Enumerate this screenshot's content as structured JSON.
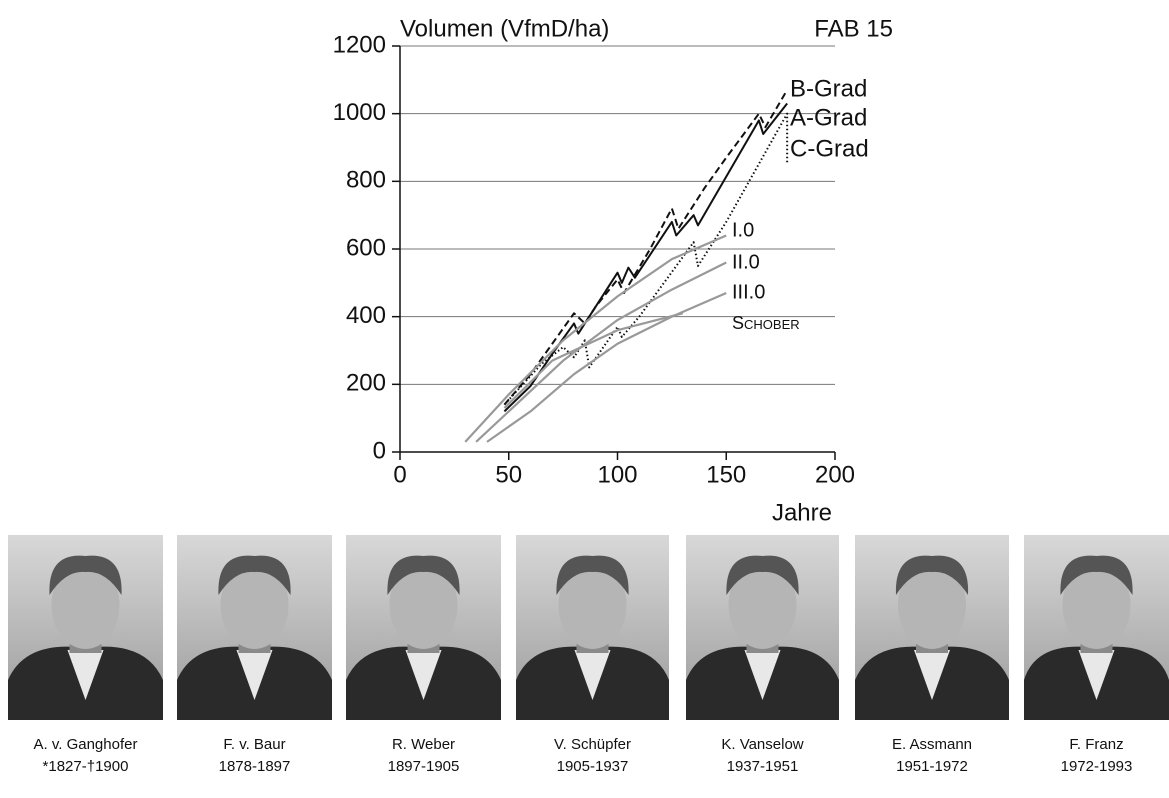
{
  "chart_data": {
    "type": "line",
    "title": "FAB 15",
    "y_label": "Volumen (VfmD/ha)",
    "x_label": "Jahre",
    "xlim": [
      0,
      200
    ],
    "ylim": [
      0,
      1200
    ],
    "xticks": [
      0,
      50,
      100,
      150,
      200
    ],
    "yticks": [
      0,
      200,
      400,
      600,
      800,
      1000,
      1200
    ],
    "grid": true,
    "series": [
      {
        "name": "B-Grad",
        "color": "#111111",
        "dash": "dashed",
        "x": [
          48,
          60,
          70,
          80,
          85,
          90,
          100,
          103,
          115,
          125,
          128,
          140,
          150,
          165,
          168,
          178
        ],
        "values": [
          140,
          230,
          320,
          410,
          380,
          430,
          510,
          470,
          600,
          720,
          660,
          780,
          870,
          1000,
          960,
          1070
        ]
      },
      {
        "name": "A-Grad",
        "color": "#111111",
        "dash": "solid",
        "x": [
          48,
          60,
          70,
          80,
          82,
          100,
          102,
          105,
          108,
          125,
          127,
          135,
          137,
          165,
          167,
          178
        ],
        "values": [
          120,
          195,
          290,
          380,
          350,
          530,
          500,
          545,
          515,
          680,
          640,
          700,
          670,
          980,
          940,
          1030
        ]
      },
      {
        "name": "C-Grad",
        "color": "#111111",
        "dash": "dotted",
        "x": [
          48,
          65,
          75,
          80,
          85,
          87,
          100,
          102,
          110,
          135,
          137,
          150,
          178,
          178
        ],
        "values": [
          140,
          260,
          310,
          280,
          330,
          250,
          370,
          340,
          400,
          620,
          550,
          680,
          1000,
          850
        ]
      },
      {
        "name": "I.0",
        "color": "#999999",
        "dash": "solid",
        "x": [
          30,
          50,
          75,
          100,
          125,
          150
        ],
        "values": [
          30,
          170,
          330,
          460,
          570,
          640
        ]
      },
      {
        "name": "II.0",
        "color": "#999999",
        "dash": "solid",
        "x": [
          35,
          50,
          75,
          100,
          125,
          150
        ],
        "values": [
          30,
          120,
          270,
          390,
          480,
          560
        ]
      },
      {
        "name": "III.0",
        "color": "#999999",
        "dash": "solid",
        "x": [
          40,
          60,
          80,
          100,
          125,
          150
        ],
        "values": [
          30,
          120,
          230,
          320,
          400,
          470
        ]
      },
      {
        "name": "Schober",
        "color": "#999999",
        "dash": "solid",
        "x": [
          48,
          70,
          100,
          130
        ],
        "values": [
          130,
          270,
          360,
          410
        ]
      }
    ]
  },
  "portraits": [
    {
      "name": "A. v. Ganghofer",
      "dates": "*1827-†1900"
    },
    {
      "name": "F. v. Baur",
      "dates": "1878-1897"
    },
    {
      "name": "R. Weber",
      "dates": "1897-1905"
    },
    {
      "name": "V. Schüpfer",
      "dates": "1905-1937"
    },
    {
      "name": "K. Vanselow",
      "dates": "1937-1951"
    },
    {
      "name": "E. Assmann",
      "dates": "1951-1972"
    },
    {
      "name": "F. Franz",
      "dates": "1972-1993"
    }
  ]
}
